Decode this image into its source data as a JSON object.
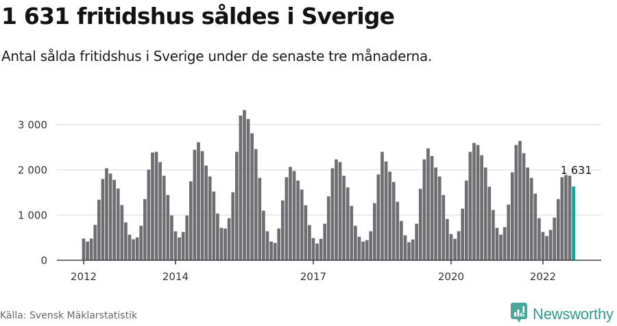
{
  "header": {
    "title": "1 631 fritidshus såldes i Sverige",
    "subtitle": "Antal sålda fritidshus i Sverige under de senaste tre månaderna."
  },
  "footer": {
    "source": "Källa: Svensk Mäklarstatistik",
    "brand": "Newsworthy",
    "brand_icon": "bar-chart-speech-bubble-icon"
  },
  "colors": {
    "bar": "#6e6d72",
    "highlight": "#12a39a",
    "grid": "#e3e3e3",
    "axis": "#444444",
    "brand": "#2f9a8e"
  },
  "chart_data": {
    "type": "bar",
    "title": "1 631 fritidshus såldes i Sverige",
    "subtitle": "Antal sålda fritidshus i Sverige under de senaste tre månaderna.",
    "xlabel": "",
    "ylabel": "",
    "ylim": [
      0,
      3400
    ],
    "yticks": [
      0,
      1000,
      2000,
      3000
    ],
    "ytick_labels": [
      "0",
      "1 000",
      "2 000",
      "3 000"
    ],
    "xtick_labels": [
      {
        "label": "2012",
        "index": 0
      },
      {
        "label": "2014",
        "index": 24
      },
      {
        "label": "2017",
        "index": 60
      },
      {
        "label": "2020",
        "index": 96
      },
      {
        "label": "2022",
        "index": 120
      }
    ],
    "grid": true,
    "start": "2012-01",
    "end": "2022-09",
    "frequency": "monthly",
    "highlight_index": 128,
    "annotation": {
      "text": "1 631",
      "index": 128,
      "value": 1631
    },
    "values": [
      480,
      414,
      480,
      783,
      1338,
      1798,
      2035,
      1919,
      1778,
      1586,
      1222,
      838,
      566,
      465,
      505,
      763,
      1354,
      2005,
      2384,
      2399,
      2172,
      1869,
      1444,
      990,
      641,
      505,
      626,
      990,
      1747,
      2444,
      2611,
      2414,
      2096,
      1854,
      1520,
      1035,
      717,
      702,
      929,
      1505,
      2399,
      3202,
      3323,
      3126,
      2808,
      2460,
      1823,
      1096,
      641,
      414,
      384,
      702,
      1323,
      1838,
      2066,
      1975,
      1763,
      1566,
      1217,
      778,
      490,
      369,
      475,
      808,
      1414,
      2035,
      2232,
      2172,
      1869,
      1611,
      1202,
      763,
      520,
      414,
      444,
      641,
      1263,
      1899,
      2399,
      2187,
      1960,
      1732,
      1293,
      869,
      551,
      399,
      460,
      808,
      1581,
      2232,
      2475,
      2308,
      2051,
      1854,
      1444,
      914,
      581,
      475,
      641,
      1141,
      1763,
      2399,
      2596,
      2551,
      2323,
      2051,
      1626,
      1111,
      717,
      566,
      732,
      1232,
      1944,
      2551,
      2641,
      2369,
      2051,
      1823,
      1475,
      929,
      626,
      535,
      672,
      944,
      1354,
      1838,
      1914,
      1869,
      1631
    ]
  }
}
